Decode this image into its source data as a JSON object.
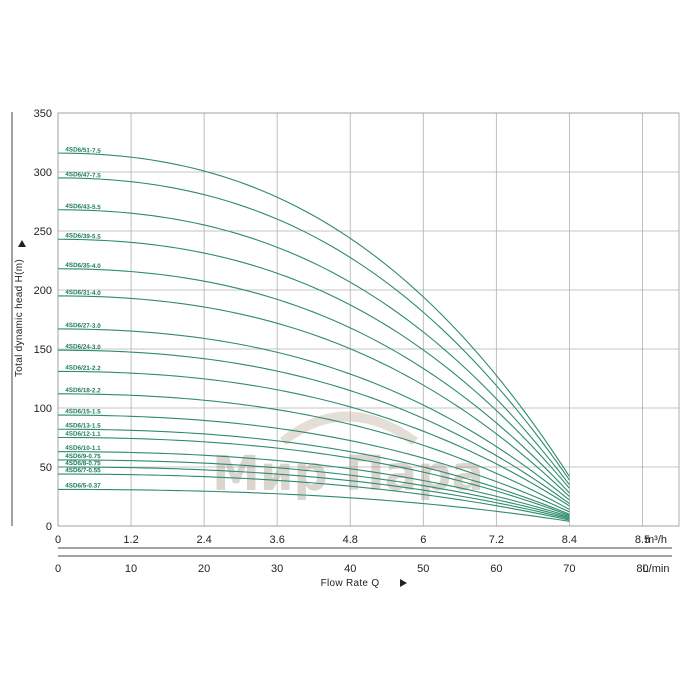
{
  "colors": {
    "curve": "#2e8b6e",
    "grid": "#b0b0b0",
    "label": "#1d7a55",
    "axis": "#444444"
  },
  "watermark": "Мир Пара",
  "chart_data": {
    "type": "line",
    "title": "",
    "ylabel": "Total dynamic head H(m)",
    "xlabel": "Flow Rate Q",
    "x_unit_top": "m³/h",
    "x_unit_bottom": "L/min",
    "xlim_m3h": [
      0,
      10.2
    ],
    "ylim": [
      0,
      350
    ],
    "grid": true,
    "y_ticks": [
      "0",
      "50",
      "100",
      "150",
      "200",
      "250",
      "300",
      "350"
    ],
    "x_ticks_top": [
      "0",
      "1.2",
      "2.4",
      "3.6",
      "4.8",
      "6",
      "7.2",
      "8.4",
      "8.5",
      "m³/h"
    ],
    "x_ticks_bottom": [
      "0",
      "10",
      "20",
      "30",
      "40",
      "50",
      "60",
      "70",
      "80",
      "L/min"
    ],
    "series": [
      {
        "name": "4SD6/51-7.5",
        "shutoff": 316,
        "end": 42
      },
      {
        "name": "4SD6/47-7.5",
        "shutoff": 295,
        "end": 39
      },
      {
        "name": "4SD6/43-5.5",
        "shutoff": 268,
        "end": 35
      },
      {
        "name": "4SD6/39-5.5",
        "shutoff": 243,
        "end": 32
      },
      {
        "name": "4SD6/35-4.0",
        "shutoff": 218,
        "end": 28
      },
      {
        "name": "4SD6/31-4.0",
        "shutoff": 195,
        "end": 25
      },
      {
        "name": "4SD6/27-3.0",
        "shutoff": 167,
        "end": 22
      },
      {
        "name": "4SD6/24-3.0",
        "shutoff": 149,
        "end": 19
      },
      {
        "name": "4SD6/21-2.2",
        "shutoff": 131,
        "end": 17
      },
      {
        "name": "4SD6/18-2.2",
        "shutoff": 112,
        "end": 14
      },
      {
        "name": "4SD6/15-1.5",
        "shutoff": 94,
        "end": 12
      },
      {
        "name": "4SD6/13-1.5",
        "shutoff": 82,
        "end": 10
      },
      {
        "name": "4SD6/12-1.1",
        "shutoff": 75,
        "end": 9
      },
      {
        "name": "4SD6/10-1.1",
        "shutoff": 63,
        "end": 8
      },
      {
        "name": "4SD6/9-0.75",
        "shutoff": 56,
        "end": 7
      },
      {
        "name": "4SD6/8-0.75",
        "shutoff": 50,
        "end": 6
      },
      {
        "name": "4SD6/7-0.55",
        "shutoff": 44,
        "end": 5
      },
      {
        "name": "4SD6/5-0.37",
        "shutoff": 31,
        "end": 4
      }
    ],
    "x_end_m3h": 8.4
  }
}
